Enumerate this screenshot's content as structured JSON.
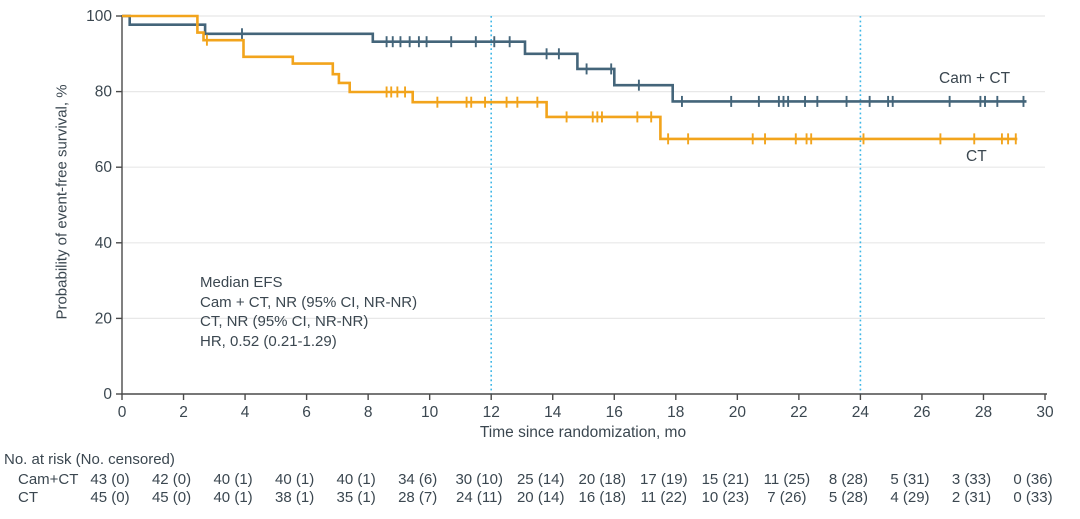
{
  "figure": {
    "curve_label_top": "Cam + CT",
    "curve_label_bottom": "CT"
  },
  "chart_data": {
    "type": "line",
    "subtype": "kaplan-meier-step",
    "title": "",
    "xlabel": "Time since randomization, mo",
    "ylabel": "Probability of event-free survival, %",
    "xlim": [
      0,
      30
    ],
    "ylim": [
      0,
      100
    ],
    "x_ticks": [
      0,
      2,
      4,
      6,
      8,
      10,
      12,
      14,
      16,
      18,
      20,
      22,
      24,
      26,
      28,
      30
    ],
    "y_ticks": [
      0,
      20,
      40,
      60,
      80,
      100
    ],
    "grid": "horizontal-light",
    "reference_lines_x": [
      12,
      24
    ],
    "reference_line_color": "#40b7e6",
    "annotation": [
      "Median EFS",
      "Cam + CT, NR (95% CI, NR-NR)",
      "CT, NR (95% CI, NR-NR)",
      "HR, 0.52 (0.21-1.29)"
    ],
    "series": [
      {
        "name": "Cam + CT",
        "color": "#44657a",
        "steps": [
          [
            0,
            100
          ],
          [
            0.25,
            100
          ],
          [
            0.25,
            97.7
          ],
          [
            2.7,
            97.7
          ],
          [
            2.7,
            95.3
          ],
          [
            8.15,
            95.3
          ],
          [
            8.15,
            93.2
          ],
          [
            13.1,
            93.2
          ],
          [
            13.1,
            90.0
          ],
          [
            14.8,
            90.0
          ],
          [
            14.8,
            86.0
          ],
          [
            16.0,
            86.0
          ],
          [
            16.0,
            81.7
          ],
          [
            17.9,
            81.7
          ],
          [
            17.9,
            77.4
          ],
          [
            29.4,
            77.4
          ]
        ],
        "censors": [
          [
            3.9,
            95.3
          ],
          [
            8.6,
            93.2
          ],
          [
            8.8,
            93.2
          ],
          [
            9.05,
            93.2
          ],
          [
            9.35,
            93.2
          ],
          [
            9.65,
            93.2
          ],
          [
            9.9,
            93.2
          ],
          [
            10.7,
            93.2
          ],
          [
            11.5,
            93.2
          ],
          [
            12.1,
            93.2
          ],
          [
            12.6,
            93.2
          ],
          [
            13.8,
            90.0
          ],
          [
            14.2,
            90.0
          ],
          [
            15.1,
            86.0
          ],
          [
            15.9,
            86.0
          ],
          [
            16.8,
            81.7
          ],
          [
            18.2,
            77.4
          ],
          [
            19.8,
            77.4
          ],
          [
            20.7,
            77.4
          ],
          [
            21.35,
            77.4
          ],
          [
            21.5,
            77.4
          ],
          [
            21.65,
            77.4
          ],
          [
            22.2,
            77.4
          ],
          [
            22.6,
            77.4
          ],
          [
            23.55,
            77.4
          ],
          [
            24.3,
            77.4
          ],
          [
            24.9,
            77.4
          ],
          [
            25.05,
            77.4
          ],
          [
            26.9,
            77.4
          ],
          [
            27.9,
            77.4
          ],
          [
            28.05,
            77.4
          ],
          [
            28.45,
            77.4
          ],
          [
            29.3,
            77.4
          ]
        ]
      },
      {
        "name": "CT",
        "color": "#f2a41c",
        "steps": [
          [
            0,
            100
          ],
          [
            2.45,
            100
          ],
          [
            2.45,
            95.6
          ],
          [
            2.65,
            95.6
          ],
          [
            2.65,
            93.6
          ],
          [
            3.95,
            93.6
          ],
          [
            3.95,
            89.2
          ],
          [
            5.55,
            89.2
          ],
          [
            5.55,
            87.4
          ],
          [
            6.85,
            87.4
          ],
          [
            6.85,
            84.6
          ],
          [
            7.05,
            84.6
          ],
          [
            7.05,
            82.3
          ],
          [
            7.4,
            82.3
          ],
          [
            7.4,
            79.9
          ],
          [
            9.45,
            79.9
          ],
          [
            9.45,
            77.2
          ],
          [
            13.8,
            77.2
          ],
          [
            13.8,
            73.3
          ],
          [
            17.5,
            73.3
          ],
          [
            17.5,
            67.5
          ],
          [
            29.1,
            67.5
          ]
        ],
        "censors": [
          [
            2.76,
            93.6
          ],
          [
            8.6,
            79.9
          ],
          [
            8.75,
            79.9
          ],
          [
            8.95,
            79.9
          ],
          [
            9.2,
            79.9
          ],
          [
            10.25,
            77.2
          ],
          [
            11.2,
            77.2
          ],
          [
            11.35,
            77.2
          ],
          [
            11.8,
            77.2
          ],
          [
            12.5,
            77.2
          ],
          [
            12.85,
            77.2
          ],
          [
            13.5,
            77.2
          ],
          [
            14.45,
            73.3
          ],
          [
            15.3,
            73.3
          ],
          [
            15.45,
            73.3
          ],
          [
            15.6,
            73.3
          ],
          [
            16.75,
            73.3
          ],
          [
            17.2,
            73.3
          ],
          [
            17.75,
            67.5
          ],
          [
            18.4,
            67.5
          ],
          [
            20.5,
            67.5
          ],
          [
            20.9,
            67.5
          ],
          [
            21.9,
            67.5
          ],
          [
            22.25,
            67.5
          ],
          [
            22.4,
            67.5
          ],
          [
            24.1,
            67.5
          ],
          [
            26.6,
            67.5
          ],
          [
            27.7,
            67.5
          ],
          [
            28.6,
            67.5
          ],
          [
            28.8,
            67.5
          ],
          [
            29.05,
            67.5
          ]
        ]
      }
    ],
    "legend_position": "end-of-line-labels"
  },
  "at_risk": {
    "header": "No. at risk (No. censored)",
    "columns": [
      0,
      2,
      4,
      6,
      8,
      10,
      12,
      14,
      16,
      18,
      20,
      22,
      24,
      26,
      28,
      30
    ],
    "rows": [
      {
        "label": "Cam+CT",
        "values": [
          "43 (0)",
          "42 (0)",
          "40 (1)",
          "40 (1)",
          "40 (1)",
          "34 (6)",
          "30 (10)",
          "25 (14)",
          "20 (18)",
          "17 (19)",
          "15 (21)",
          "11 (25)",
          "8 (28)",
          "5 (31)",
          "3 (33)",
          "0 (36)"
        ]
      },
      {
        "label": "CT",
        "values": [
          "45 (0)",
          "45 (0)",
          "40 (1)",
          "38 (1)",
          "35 (1)",
          "28 (7)",
          "24 (11)",
          "20 (14)",
          "16 (18)",
          "11 (22)",
          "10 (23)",
          "7 (26)",
          "5 (28)",
          "4 (29)",
          "2 (31)",
          "0 (33)"
        ]
      }
    ]
  },
  "colors": {
    "axis": "#4a4a4a",
    "grid": "#e8e8e8",
    "text": "#3b4750",
    "cam_ct": "#44657a",
    "ct": "#f2a41c",
    "reference": "#40b7e6"
  }
}
